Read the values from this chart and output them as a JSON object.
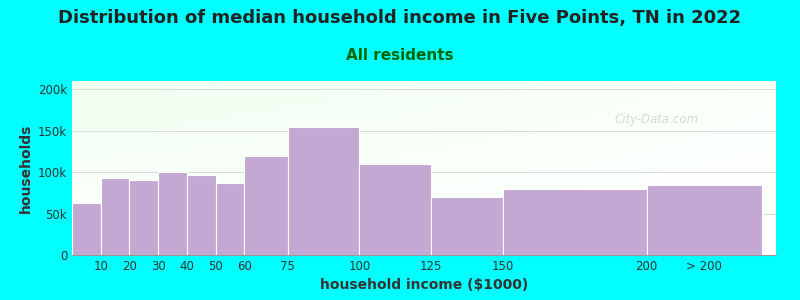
{
  "title": "Distribution of median household income in Five Points, TN in 2022",
  "subtitle": "All residents",
  "xlabel": "household income ($1000)",
  "ylabel": "households",
  "background_color": "#00FFFF",
  "bar_color": "#C4A8D4",
  "bar_edge_color": "#FFFFFF",
  "categories": [
    "10",
    "20",
    "30",
    "40",
    "50",
    "60",
    "75",
    "100",
    "125",
    "150",
    "200",
    "> 200"
  ],
  "values": [
    63000,
    93000,
    90000,
    100000,
    97000,
    87000,
    120000,
    155000,
    110000,
    70000,
    80000,
    85000
  ],
  "ylim": [
    0,
    210000
  ],
  "yticks": [
    0,
    50000,
    100000,
    150000,
    200000
  ],
  "ytick_labels": [
    "0",
    "50k",
    "100k",
    "150k",
    "200k"
  ],
  "title_fontsize": 13,
  "subtitle_fontsize": 11,
  "axis_label_fontsize": 10,
  "tick_fontsize": 8.5,
  "watermark_text": "City-Data.com",
  "title_color": "#222222",
  "subtitle_color": "#006600",
  "plot_bg_color_topleft": "#E8F5E0",
  "plot_bg_color_right": "#F8FFF8",
  "plot_bg_color_bottom": "#FFFFFF",
  "x_left": [
    0,
    10,
    20,
    30,
    40,
    50,
    60,
    75,
    100,
    125,
    150,
    200
  ],
  "x_right": [
    10,
    20,
    30,
    40,
    50,
    60,
    75,
    100,
    125,
    150,
    200,
    240
  ],
  "xlim": [
    0,
    245
  ],
  "xtick_positions": [
    10,
    20,
    30,
    40,
    50,
    60,
    75,
    100,
    125,
    150,
    200,
    220
  ],
  "grid_color": "#CCCCCC",
  "watermark_color": "#BBBBBB",
  "watermark_alpha": 0.55
}
